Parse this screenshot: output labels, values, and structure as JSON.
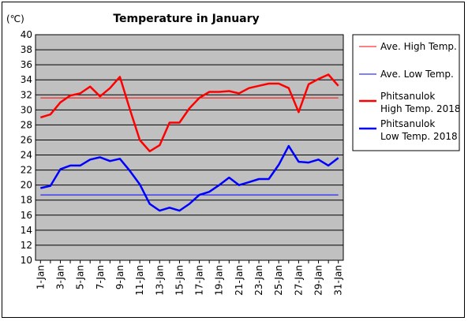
{
  "chart_data": {
    "type": "line",
    "title": "Temperature in January",
    "unit_label": "(℃)",
    "ylim": [
      10,
      40
    ],
    "y_ticks": [
      10,
      12,
      14,
      16,
      18,
      20,
      22,
      24,
      26,
      28,
      30,
      32,
      34,
      36,
      38,
      40
    ],
    "x": [
      1,
      2,
      3,
      4,
      5,
      6,
      7,
      8,
      9,
      10,
      11,
      12,
      13,
      14,
      15,
      16,
      17,
      18,
      19,
      20,
      21,
      22,
      23,
      24,
      25,
      26,
      27,
      28,
      29,
      30,
      31
    ],
    "x_tick_labels": [
      "1-Jan",
      "3-Jan",
      "5-Jan",
      "7-Jan",
      "9-Jan",
      "11-Jan",
      "13-Jan",
      "15-Jan",
      "17-Jan",
      "19-Jan",
      "21-Jan",
      "23-Jan",
      "25-Jan",
      "27-Jan",
      "29-Jan",
      "31-Jan"
    ],
    "grid": true,
    "legend_position": "right",
    "plot_background": "#c0c0c0",
    "series": [
      {
        "name": "Ave. High Temp.",
        "color": "#ff0000",
        "style": "thin",
        "values": [
          31.6,
          31.6,
          31.6,
          31.6,
          31.6,
          31.6,
          31.6,
          31.6,
          31.6,
          31.6,
          31.6,
          31.6,
          31.6,
          31.6,
          31.6,
          31.6,
          31.6,
          31.6,
          31.6,
          31.6,
          31.6,
          31.6,
          31.6,
          31.6,
          31.6,
          31.6,
          31.6,
          31.6,
          31.6,
          31.6,
          31.6
        ]
      },
      {
        "name": "Ave. Low Temp.",
        "color": "#0000ff",
        "style": "thin",
        "values": [
          18.7,
          18.7,
          18.7,
          18.7,
          18.7,
          18.7,
          18.7,
          18.7,
          18.7,
          18.7,
          18.7,
          18.7,
          18.7,
          18.7,
          18.7,
          18.7,
          18.7,
          18.7,
          18.7,
          18.7,
          18.7,
          18.7,
          18.7,
          18.7,
          18.7,
          18.7,
          18.7,
          18.7,
          18.7,
          18.7,
          18.7
        ]
      },
      {
        "name": "Phitsanulok High Temp. 2018",
        "legend_lines": [
          "Phitsanulok",
          "High Temp. 2018"
        ],
        "color": "#ff0000",
        "style": "thick",
        "values": [
          29.0,
          29.4,
          31.0,
          31.9,
          32.2,
          33.1,
          31.8,
          32.9,
          34.4,
          30.1,
          26.0,
          24.5,
          25.3,
          28.3,
          28.3,
          30.2,
          31.6,
          32.4,
          32.4,
          32.5,
          32.2,
          32.9,
          33.2,
          33.5,
          33.5,
          32.9,
          29.7,
          33.4,
          34.1,
          34.7,
          33.2
        ]
      },
      {
        "name": "Phitsanulok Low Temp. 2018",
        "legend_lines": [
          "Phitsanulok",
          "Low Temp. 2018"
        ],
        "color": "#0000ff",
        "style": "thick",
        "values": [
          19.6,
          19.9,
          22.1,
          22.6,
          22.6,
          23.4,
          23.7,
          23.2,
          23.5,
          21.9,
          20.1,
          17.5,
          16.6,
          17.0,
          16.6,
          17.5,
          18.7,
          19.1,
          20.0,
          21.0,
          20.0,
          20.4,
          20.8,
          20.8,
          22.7,
          25.2,
          23.1,
          23.0,
          23.4,
          22.6,
          23.6
        ]
      }
    ]
  }
}
